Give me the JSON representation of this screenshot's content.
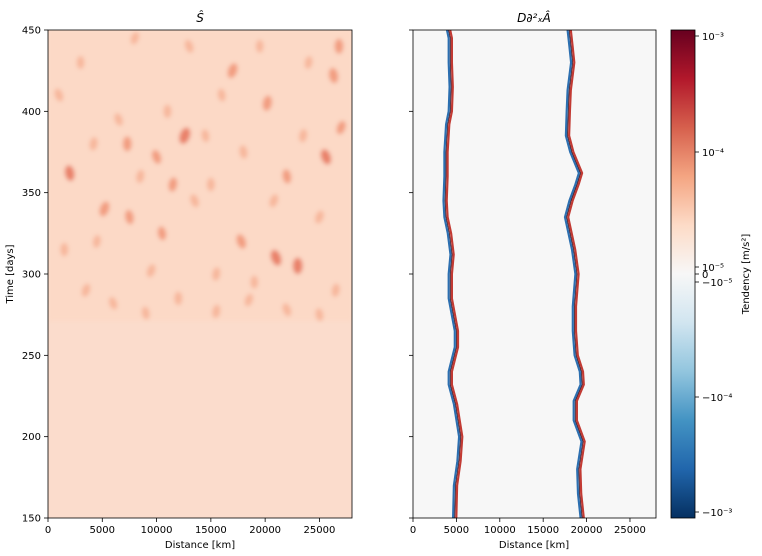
{
  "chart_data": [
    {
      "type": "heatmap",
      "title": "Ŝ",
      "xlabel": "Distance [km]",
      "ylabel": "Time [days]",
      "xlim": [
        0,
        28000
      ],
      "ylim": [
        150,
        450
      ],
      "xticks": [
        "0",
        "5000",
        "10000",
        "15000",
        "20000",
        "25000"
      ],
      "yticks": [
        "150",
        "200",
        "250",
        "300",
        "350",
        "400",
        "450"
      ],
      "background_color": "#fbdccc",
      "onset_time": 271,
      "blobs": [
        {
          "x": 1000,
          "y": 410,
          "v": 0.35
        },
        {
          "x": 2000,
          "y": 362,
          "v": 0.6
        },
        {
          "x": 3000,
          "y": 430,
          "v": 0.3
        },
        {
          "x": 4200,
          "y": 380,
          "v": 0.35
        },
        {
          "x": 5200,
          "y": 340,
          "v": 0.55
        },
        {
          "x": 6500,
          "y": 395,
          "v": 0.3
        },
        {
          "x": 7500,
          "y": 335,
          "v": 0.45
        },
        {
          "x": 7300,
          "y": 380,
          "v": 0.5
        },
        {
          "x": 8500,
          "y": 360,
          "v": 0.35
        },
        {
          "x": 9500,
          "y": 302,
          "v": 0.35
        },
        {
          "x": 10000,
          "y": 372,
          "v": 0.45
        },
        {
          "x": 10500,
          "y": 325,
          "v": 0.4
        },
        {
          "x": 11000,
          "y": 400,
          "v": 0.35
        },
        {
          "x": 11500,
          "y": 355,
          "v": 0.45
        },
        {
          "x": 12600,
          "y": 385,
          "v": 0.7
        },
        {
          "x": 13500,
          "y": 345,
          "v": 0.35
        },
        {
          "x": 14500,
          "y": 385,
          "v": 0.3
        },
        {
          "x": 15000,
          "y": 355,
          "v": 0.35
        },
        {
          "x": 15500,
          "y": 300,
          "v": 0.35
        },
        {
          "x": 17000,
          "y": 425,
          "v": 0.55
        },
        {
          "x": 17800,
          "y": 320,
          "v": 0.5
        },
        {
          "x": 18000,
          "y": 375,
          "v": 0.35
        },
        {
          "x": 19000,
          "y": 295,
          "v": 0.3
        },
        {
          "x": 20200,
          "y": 405,
          "v": 0.55
        },
        {
          "x": 20800,
          "y": 345,
          "v": 0.35
        },
        {
          "x": 21000,
          "y": 310,
          "v": 0.65
        },
        {
          "x": 22000,
          "y": 360,
          "v": 0.45
        },
        {
          "x": 23000,
          "y": 305,
          "v": 0.65
        },
        {
          "x": 23500,
          "y": 385,
          "v": 0.35
        },
        {
          "x": 25000,
          "y": 335,
          "v": 0.35
        },
        {
          "x": 25600,
          "y": 372,
          "v": 0.6
        },
        {
          "x": 26300,
          "y": 422,
          "v": 0.55
        },
        {
          "x": 26800,
          "y": 440,
          "v": 0.5
        },
        {
          "x": 26500,
          "y": 290,
          "v": 0.35
        },
        {
          "x": 3500,
          "y": 290,
          "v": 0.35
        },
        {
          "x": 6000,
          "y": 282,
          "v": 0.3
        },
        {
          "x": 9000,
          "y": 276,
          "v": 0.3
        },
        {
          "x": 12000,
          "y": 285,
          "v": 0.35
        },
        {
          "x": 15500,
          "y": 277,
          "v": 0.35
        },
        {
          "x": 18500,
          "y": 284,
          "v": 0.3
        },
        {
          "x": 22000,
          "y": 278,
          "v": 0.35
        },
        {
          "x": 25000,
          "y": 275,
          "v": 0.3
        },
        {
          "x": 1500,
          "y": 315,
          "v": 0.35
        },
        {
          "x": 4500,
          "y": 320,
          "v": 0.3
        },
        {
          "x": 8000,
          "y": 445,
          "v": 0.3
        },
        {
          "x": 13000,
          "y": 440,
          "v": 0.35
        },
        {
          "x": 16000,
          "y": 410,
          "v": 0.3
        },
        {
          "x": 19500,
          "y": 440,
          "v": 0.3
        },
        {
          "x": 24000,
          "y": 430,
          "v": 0.3
        },
        {
          "x": 27000,
          "y": 390,
          "v": 0.4
        }
      ]
    },
    {
      "type": "heatmap",
      "title": "D∂²ₓÂ",
      "xlabel": "Distance [km]",
      "ylabel": "",
      "xlim": [
        0,
        28000
      ],
      "ylim": [
        150,
        450
      ],
      "xticks": [
        "0",
        "5000",
        "10000",
        "15000",
        "20000",
        "25000"
      ],
      "yticks": [],
      "background_color": "#f7f7f7",
      "fronts": [
        {
          "name": "front-1",
          "points": [
            [
              4800,
              150
            ],
            [
              4900,
              170
            ],
            [
              5300,
              185
            ],
            [
              5500,
              200
            ],
            [
              4900,
              220
            ],
            [
              4300,
              232
            ],
            [
              4300,
              240
            ],
            [
              5000,
              255
            ],
            [
              5000,
              265
            ],
            [
              4300,
              285
            ],
            [
              4300,
              300
            ],
            [
              4500,
              312
            ],
            [
              4200,
              325
            ],
            [
              3800,
              335
            ],
            [
              3700,
              345
            ],
            [
              3800,
              360
            ],
            [
              3800,
              375
            ],
            [
              4000,
              392
            ],
            [
              4300,
              400
            ],
            [
              4400,
              415
            ],
            [
              4300,
              430
            ],
            [
              4300,
              445
            ],
            [
              4100,
              450
            ]
          ]
        },
        {
          "name": "front-2",
          "points": [
            [
              19500,
              150
            ],
            [
              19200,
              165
            ],
            [
              19100,
              180
            ],
            [
              19600,
              197
            ],
            [
              18700,
              210
            ],
            [
              18700,
              222
            ],
            [
              19500,
              232
            ],
            [
              19400,
              240
            ],
            [
              18800,
              250
            ],
            [
              18600,
              265
            ],
            [
              18600,
              280
            ],
            [
              18900,
              300
            ],
            [
              18500,
              315
            ],
            [
              17700,
              335
            ],
            [
              18200,
              345
            ],
            [
              18900,
              355
            ],
            [
              19300,
              362
            ],
            [
              18300,
              375
            ],
            [
              17800,
              385
            ],
            [
              17900,
              400
            ],
            [
              18000,
              413
            ],
            [
              18400,
              430
            ],
            [
              18200,
              440
            ],
            [
              18000,
              450
            ]
          ]
        }
      ]
    }
  ],
  "colorbar": {
    "label": "Tendency [m/s²]",
    "ticks_top": [
      "10⁻³",
      "10⁻⁴",
      "10⁻⁵"
    ],
    "tick_zero": "0",
    "ticks_bottom": [
      "−10⁻⁵",
      "−10⁻⁴",
      "−10⁻³"
    ],
    "colors": [
      "#67001f",
      "#b2182b",
      "#d6604d",
      "#f4a582",
      "#fddbc7",
      "#f7f7f7",
      "#d1e5f0",
      "#92c5de",
      "#4393c3",
      "#2166ac",
      "#053061"
    ]
  }
}
